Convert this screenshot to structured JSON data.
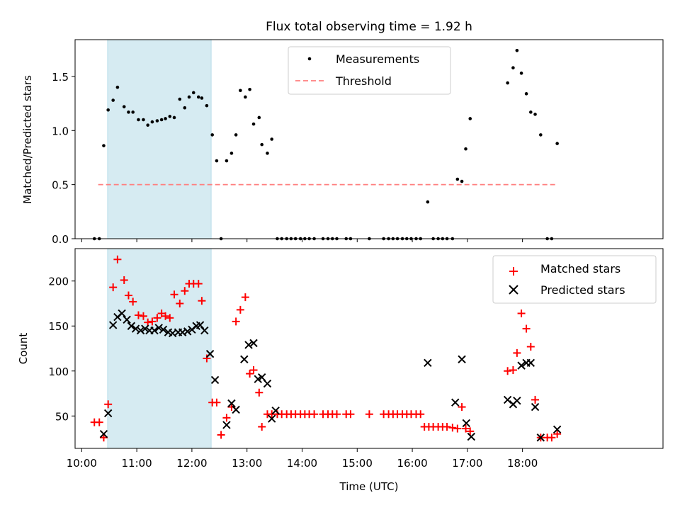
{
  "chart_data": [
    {
      "type": "scatter",
      "title": "Flux total observing time = 1.92 h",
      "xlabel": "",
      "ylabel": "Matched/Predicted stars",
      "xlim_hours": [
        9.88,
        20.55
      ],
      "ylim": [
        0,
        1.84
      ],
      "yticks": [
        0.0,
        0.5,
        1.0,
        1.5
      ],
      "ytick_labels": [
        "0.0",
        "0.5",
        "1.0",
        "1.5"
      ],
      "highlight_span_hours": [
        10.47,
        12.35
      ],
      "highlight_color": "#add8e6",
      "legend_position": "upper center",
      "series": [
        {
          "name": "Measurements",
          "marker": "dot",
          "color": "#000000",
          "points": [
            [
              10.23,
              0
            ],
            [
              10.32,
              0
            ],
            [
              10.4,
              0.86
            ],
            [
              10.48,
              1.19
            ],
            [
              10.57,
              1.28
            ],
            [
              10.65,
              1.4
            ],
            [
              10.77,
              1.22
            ],
            [
              10.85,
              1.17
            ],
            [
              10.93,
              1.17
            ],
            [
              11.03,
              1.1
            ],
            [
              11.12,
              1.1
            ],
            [
              11.2,
              1.05
            ],
            [
              11.28,
              1.08
            ],
            [
              11.37,
              1.09
            ],
            [
              11.45,
              1.1
            ],
            [
              11.52,
              1.11
            ],
            [
              11.6,
              1.13
            ],
            [
              11.68,
              1.12
            ],
            [
              11.78,
              1.29
            ],
            [
              11.87,
              1.21
            ],
            [
              11.95,
              1.31
            ],
            [
              12.03,
              1.35
            ],
            [
              12.12,
              1.31
            ],
            [
              12.18,
              1.3
            ],
            [
              12.27,
              1.23
            ],
            [
              12.37,
              0.96
            ],
            [
              12.45,
              0.72
            ],
            [
              12.53,
              0
            ],
            [
              12.63,
              0.72
            ],
            [
              12.72,
              0.79
            ],
            [
              12.8,
              0.96
            ],
            [
              12.88,
              1.37
            ],
            [
              12.97,
              1.31
            ],
            [
              13.05,
              1.38
            ],
            [
              13.12,
              1.06
            ],
            [
              13.22,
              1.12
            ],
            [
              13.27,
              0.87
            ],
            [
              13.37,
              0.79
            ],
            [
              13.45,
              0.92
            ],
            [
              13.55,
              0
            ],
            [
              13.63,
              0
            ],
            [
              13.72,
              0
            ],
            [
              13.8,
              0
            ],
            [
              13.88,
              0
            ],
            [
              13.97,
              0
            ],
            [
              14.05,
              0
            ],
            [
              14.13,
              0
            ],
            [
              14.22,
              0
            ],
            [
              14.38,
              0
            ],
            [
              14.47,
              0
            ],
            [
              14.55,
              0
            ],
            [
              14.63,
              0
            ],
            [
              14.8,
              0
            ],
            [
              14.88,
              0
            ],
            [
              15.22,
              0
            ],
            [
              15.48,
              0
            ],
            [
              15.57,
              0
            ],
            [
              15.65,
              0
            ],
            [
              15.73,
              0
            ],
            [
              15.82,
              0
            ],
            [
              15.9,
              0
            ],
            [
              15.98,
              0
            ],
            [
              16.07,
              0
            ],
            [
              16.15,
              0
            ],
            [
              16.28,
              0.34
            ],
            [
              16.38,
              0
            ],
            [
              16.47,
              0
            ],
            [
              16.55,
              0
            ],
            [
              16.63,
              0
            ],
            [
              16.73,
              0
            ],
            [
              16.82,
              0.55
            ],
            [
              16.9,
              0.53
            ],
            [
              16.97,
              0.83
            ],
            [
              17.05,
              1.11
            ],
            [
              17.73,
              1.44
            ],
            [
              17.83,
              1.58
            ],
            [
              17.9,
              1.74
            ],
            [
              17.98,
              1.53
            ],
            [
              18.07,
              1.34
            ],
            [
              18.15,
              1.17
            ],
            [
              18.23,
              1.15
            ],
            [
              18.33,
              0.96
            ],
            [
              18.45,
              0
            ],
            [
              18.53,
              0
            ],
            [
              18.63,
              0.88
            ]
          ]
        },
        {
          "name": "Threshold",
          "marker": "dashed-line",
          "color": "#ff7f7f",
          "y": 0.5,
          "x_range_hours": [
            10.3,
            18.63
          ]
        }
      ]
    },
    {
      "type": "scatter",
      "title": "",
      "xlabel": "Time (UTC)",
      "ylabel": "Count",
      "xlim_hours": [
        9.88,
        20.55
      ],
      "ylim": [
        14,
        236
      ],
      "yticks": [
        50,
        100,
        150,
        200
      ],
      "ytick_labels": [
        "50",
        "100",
        "150",
        "200"
      ],
      "xticks_hours": [
        10,
        11,
        12,
        13,
        14,
        15,
        16,
        17,
        18
      ],
      "xtick_labels": [
        "10:00",
        "11:00",
        "12:00",
        "13:00",
        "14:00",
        "15:00",
        "16:00",
        "17:00",
        "18:00"
      ],
      "highlight_span_hours": [
        10.47,
        12.35
      ],
      "legend_position": "upper right",
      "series": [
        {
          "name": "Matched stars",
          "marker": "plus",
          "color": "#ff0000",
          "points": [
            [
              10.23,
              43
            ],
            [
              10.32,
              43
            ],
            [
              10.4,
              26
            ],
            [
              10.48,
              63
            ],
            [
              10.57,
              193
            ],
            [
              10.65,
              224
            ],
            [
              10.77,
              201
            ],
            [
              10.85,
              184
            ],
            [
              10.93,
              177
            ],
            [
              11.03,
              162
            ],
            [
              11.12,
              161
            ],
            [
              11.2,
              154
            ],
            [
              11.28,
              155
            ],
            [
              11.37,
              159
            ],
            [
              11.45,
              164
            ],
            [
              11.52,
              161
            ],
            [
              11.6,
              159
            ],
            [
              11.68,
              185
            ],
            [
              11.78,
              175
            ],
            [
              11.87,
              189
            ],
            [
              11.95,
              197
            ],
            [
              12.03,
              197
            ],
            [
              12.12,
              197
            ],
            [
              12.18,
              178
            ],
            [
              12.27,
              114
            ],
            [
              12.37,
              65
            ],
            [
              12.45,
              65
            ],
            [
              12.53,
              29
            ],
            [
              12.63,
              48
            ],
            [
              12.72,
              60
            ],
            [
              12.8,
              155
            ],
            [
              12.88,
              168
            ],
            [
              12.97,
              182
            ],
            [
              13.05,
              97
            ],
            [
              13.12,
              101
            ],
            [
              13.22,
              76
            ],
            [
              13.27,
              38
            ],
            [
              13.37,
              52
            ],
            [
              13.45,
              52
            ],
            [
              13.55,
              52
            ],
            [
              13.63,
              52
            ],
            [
              13.72,
              52
            ],
            [
              13.8,
              52
            ],
            [
              13.88,
              52
            ],
            [
              13.97,
              52
            ],
            [
              14.05,
              52
            ],
            [
              14.13,
              52
            ],
            [
              14.22,
              52
            ],
            [
              14.38,
              52
            ],
            [
              14.47,
              52
            ],
            [
              14.55,
              52
            ],
            [
              14.63,
              52
            ],
            [
              14.8,
              52
            ],
            [
              14.88,
              52
            ],
            [
              15.22,
              52
            ],
            [
              15.48,
              52
            ],
            [
              15.57,
              52
            ],
            [
              15.65,
              52
            ],
            [
              15.73,
              52
            ],
            [
              15.82,
              52
            ],
            [
              15.9,
              52
            ],
            [
              15.98,
              52
            ],
            [
              16.07,
              52
            ],
            [
              16.15,
              52
            ],
            [
              16.22,
              38
            ],
            [
              16.3,
              38
            ],
            [
              16.38,
              38
            ],
            [
              16.47,
              38
            ],
            [
              16.55,
              38
            ],
            [
              16.63,
              38
            ],
            [
              16.73,
              37
            ],
            [
              16.82,
              36
            ],
            [
              16.9,
              60
            ],
            [
              16.97,
              36
            ],
            [
              17.05,
              33
            ],
            [
              17.73,
              100
            ],
            [
              17.83,
              101
            ],
            [
              17.9,
              120
            ],
            [
              17.98,
              164
            ],
            [
              18.07,
              147
            ],
            [
              18.15,
              127
            ],
            [
              18.23,
              68
            ],
            [
              18.33,
              26
            ],
            [
              18.45,
              26
            ],
            [
              18.53,
              26
            ],
            [
              18.63,
              30
            ]
          ]
        },
        {
          "name": "Predicted stars",
          "marker": "x",
          "color": "#000000",
          "points": [
            [
              10.4,
              30
            ],
            [
              10.48,
              53
            ],
            [
              10.57,
              151
            ],
            [
              10.65,
              160
            ],
            [
              10.73,
              164
            ],
            [
              10.82,
              157
            ],
            [
              10.9,
              150
            ],
            [
              10.98,
              147
            ],
            [
              11.07,
              145
            ],
            [
              11.15,
              147
            ],
            [
              11.23,
              145
            ],
            [
              11.32,
              145
            ],
            [
              11.4,
              148
            ],
            [
              11.48,
              146
            ],
            [
              11.57,
              143
            ],
            [
              11.65,
              142
            ],
            [
              11.75,
              143
            ],
            [
              11.83,
              143
            ],
            [
              11.92,
              144
            ],
            [
              12.0,
              146
            ],
            [
              12.08,
              150
            ],
            [
              12.15,
              151
            ],
            [
              12.23,
              145
            ],
            [
              12.33,
              119
            ],
            [
              12.42,
              90
            ],
            [
              12.63,
              40
            ],
            [
              12.72,
              64
            ],
            [
              12.8,
              57
            ],
            [
              12.95,
              113
            ],
            [
              13.03,
              129
            ],
            [
              13.12,
              131
            ],
            [
              13.2,
              91
            ],
            [
              13.27,
              93
            ],
            [
              13.37,
              86
            ],
            [
              13.45,
              47
            ],
            [
              13.52,
              56
            ],
            [
              16.28,
              109
            ],
            [
              16.78,
              65
            ],
            [
              16.9,
              113
            ],
            [
              16.98,
              42
            ],
            [
              17.07,
              27
            ],
            [
              17.73,
              68
            ],
            [
              17.83,
              63
            ],
            [
              17.9,
              67
            ],
            [
              17.98,
              106
            ],
            [
              18.07,
              109
            ],
            [
              18.15,
              109
            ],
            [
              18.23,
              60
            ],
            [
              18.33,
              26
            ],
            [
              18.63,
              35
            ]
          ]
        }
      ]
    }
  ]
}
